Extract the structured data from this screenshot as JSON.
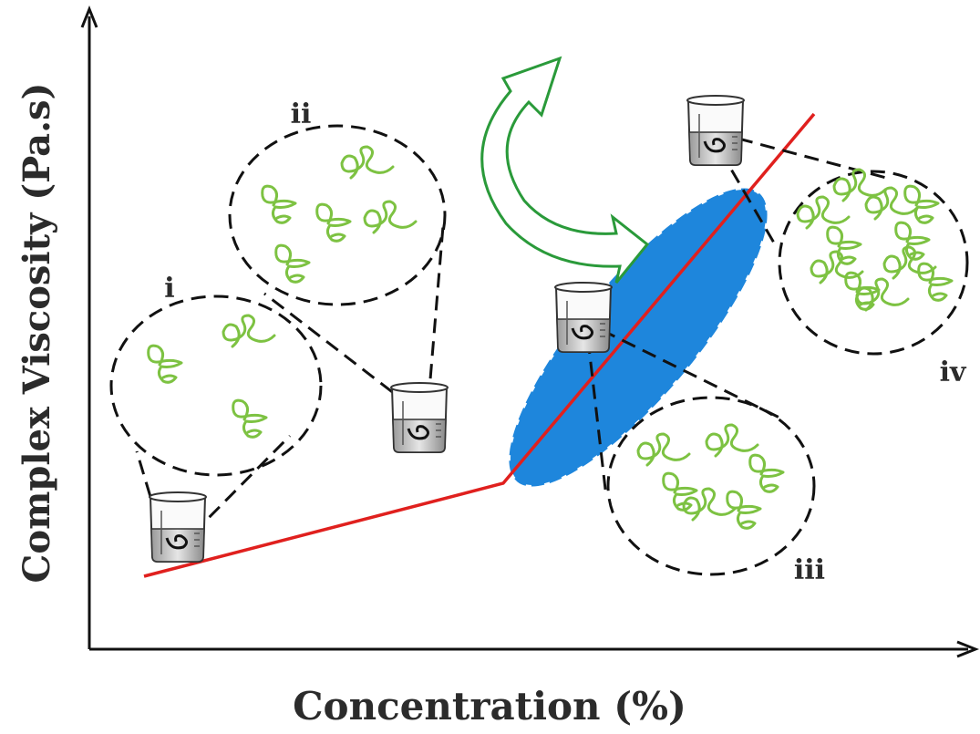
{
  "axes": {
    "y_label": "Complex Viscosity (Pa.s)",
    "x_label": "Concentration (%)"
  },
  "stages": [
    {
      "label": "i"
    },
    {
      "label": "ii"
    },
    {
      "label": "iii"
    },
    {
      "label": "iv"
    }
  ]
}
